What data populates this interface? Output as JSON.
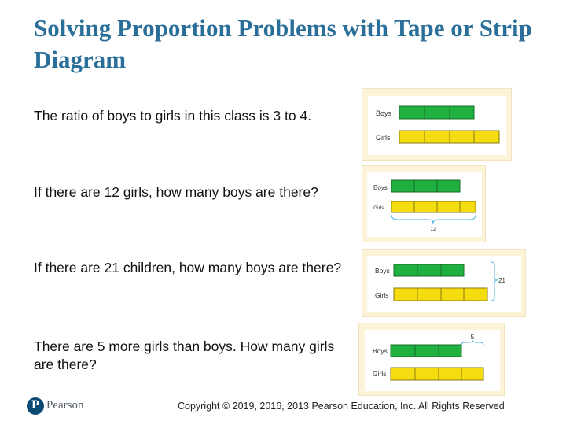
{
  "slide": {
    "title": "Solving Proportion Problems with Tape or Strip Diagram",
    "questions": [
      "The ratio of boys to girls in this class is 3 to 4.",
      "If there are 12 girls, how many boys are there?",
      "If there are 21 children, how many boys are there?",
      "There are 5 more girls than boys. How many girls are there?"
    ]
  },
  "diagrams": [
    {
      "boys_label": "Boys",
      "girls_label": "Girls",
      "boys_units": 3,
      "girls_units": 4,
      "annotation": ""
    },
    {
      "boys_label": "Boys",
      "girls_label": "Girls",
      "boys_units": 3,
      "girls_units": 4,
      "annotation": "12"
    },
    {
      "boys_label": "Boys",
      "girls_label": "Girls",
      "boys_units": 3,
      "girls_units": 4,
      "annotation": "21"
    },
    {
      "boys_label": "Boys",
      "girls_label": "Girls",
      "boys_units": 3,
      "girls_units": 4,
      "annotation": "5"
    }
  ],
  "colors": {
    "boys_bar": "#1fb040",
    "girls_bar": "#f5dc10",
    "title": "#2a6f99",
    "figure_frame": "#fdf3d9"
  },
  "footer": {
    "copyright": "Copyright © 2019, 2016, 2013 Pearson Education, Inc. All Rights Reserved",
    "logo_mark": "P",
    "logo_word": "Pearson"
  }
}
